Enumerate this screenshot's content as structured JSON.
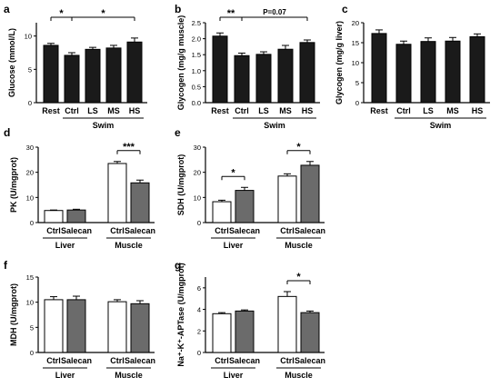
{
  "colors": {
    "bar_dark": "#1a1a1a",
    "bar_gray": "#6b6b6b",
    "bar_white": "#ffffff",
    "axis": "#000000"
  },
  "chart_data": [
    {
      "panel": "a",
      "type": "bar",
      "ylabel": "Glucose (mmol/L)",
      "ylim": [
        0,
        12
      ],
      "yticks": [
        "0",
        "5",
        "10"
      ],
      "categories": [
        "Rest",
        "Ctrl",
        "LS",
        "MS",
        "HS"
      ],
      "group_label": "Swim",
      "series": [
        {
          "values": [
            8.6,
            7.1,
            8.0,
            8.2,
            9.1
          ],
          "errors": [
            0.3,
            0.4,
            0.3,
            0.4,
            0.6
          ]
        }
      ],
      "annotations": [
        {
          "text": "*",
          "from": "Rest",
          "to": "Ctrl"
        },
        {
          "text": "*",
          "from": "Ctrl",
          "to": "HS"
        }
      ]
    },
    {
      "panel": "b",
      "type": "bar",
      "ylabel": "Glycogen (mg/g muscle)",
      "ylim": [
        0,
        2.5
      ],
      "yticks": [
        "0.0",
        "0.5",
        "1.0",
        "1.5",
        "2.0",
        "2.5"
      ],
      "categories": [
        "Rest",
        "Ctrl",
        "LS",
        "MS",
        "HS"
      ],
      "group_label": "Swim",
      "series": [
        {
          "values": [
            2.08,
            1.47,
            1.51,
            1.67,
            1.88
          ],
          "errors": [
            0.1,
            0.08,
            0.08,
            0.12,
            0.08
          ]
        }
      ],
      "annotations": [
        {
          "text": "**",
          "from": "Rest",
          "to": "Ctrl"
        },
        {
          "text": "P=0.07",
          "from": "Ctrl",
          "to": "HS"
        }
      ]
    },
    {
      "panel": "c",
      "type": "bar",
      "ylabel": "Glycogen (mg/g liver)",
      "ylim": [
        0,
        20
      ],
      "yticks": [
        "0",
        "5",
        "10",
        "15",
        "20"
      ],
      "categories": [
        "Rest",
        "Ctrl",
        "LS",
        "MS",
        "HS"
      ],
      "group_label": "Swim",
      "series": [
        {
          "values": [
            17.3,
            14.6,
            15.3,
            15.4,
            16.5
          ],
          "errors": [
            0.9,
            0.8,
            0.9,
            0.9,
            0.7
          ]
        }
      ],
      "annotations": []
    },
    {
      "panel": "d",
      "type": "bar",
      "ylabel": "PK (U/mgprot)",
      "ylim": [
        0,
        30
      ],
      "yticks": [
        "0",
        "10",
        "20",
        "30"
      ],
      "categories": [
        "Ctrl",
        "Salecan",
        "Ctrl",
        "Salecan"
      ],
      "groups": [
        "Liver",
        "Muscle"
      ],
      "series": [
        {
          "values": [
            4.8,
            5.0,
            23.5,
            15.8
          ],
          "errors": [
            0.2,
            0.3,
            0.8,
            1.1
          ]
        }
      ],
      "annotations": [
        {
          "text": "***",
          "group": 1
        }
      ]
    },
    {
      "panel": "e",
      "type": "bar",
      "ylabel": "SDH (U/mgprot)",
      "ylim": [
        0,
        30
      ],
      "yticks": [
        "0",
        "10",
        "20",
        "30"
      ],
      "categories": [
        "Ctrl",
        "Salecan",
        "Ctrl",
        "Salecan"
      ],
      "groups": [
        "Liver",
        "Muscle"
      ],
      "series": [
        {
          "values": [
            8.3,
            12.8,
            18.5,
            22.8
          ],
          "errors": [
            0.6,
            1.2,
            0.9,
            1.5
          ]
        }
      ],
      "annotations": [
        {
          "text": "*",
          "group": 0
        },
        {
          "text": "*",
          "group": 1
        }
      ]
    },
    {
      "panel": "f",
      "type": "bar",
      "ylabel": "MDH (U/mgprot)",
      "ylim": [
        0,
        15
      ],
      "yticks": [
        "0",
        "5",
        "10",
        "15"
      ],
      "categories": [
        "Ctrl",
        "Salecan",
        "Ctrl",
        "Salecan"
      ],
      "groups": [
        "Liver",
        "Muscle"
      ],
      "series": [
        {
          "values": [
            10.5,
            10.5,
            10.1,
            9.7
          ],
          "errors": [
            0.6,
            0.7,
            0.4,
            0.6
          ]
        }
      ],
      "annotations": []
    },
    {
      "panel": "g",
      "type": "bar",
      "ylabel": "Na⁺-K⁺-APTase (U/mgprot)",
      "ylim": [
        0,
        7
      ],
      "yticks": [
        "0",
        "2",
        "4",
        "6"
      ],
      "categories": [
        "Ctrl",
        "Salecan",
        "Ctrl",
        "Salecan"
      ],
      "groups": [
        "Liver",
        "Muscle"
      ],
      "series": [
        {
          "values": [
            3.6,
            3.85,
            5.2,
            3.7
          ],
          "errors": [
            0.1,
            0.1,
            0.45,
            0.15
          ]
        }
      ],
      "annotations": [
        {
          "text": "*",
          "group": 1
        }
      ]
    }
  ]
}
